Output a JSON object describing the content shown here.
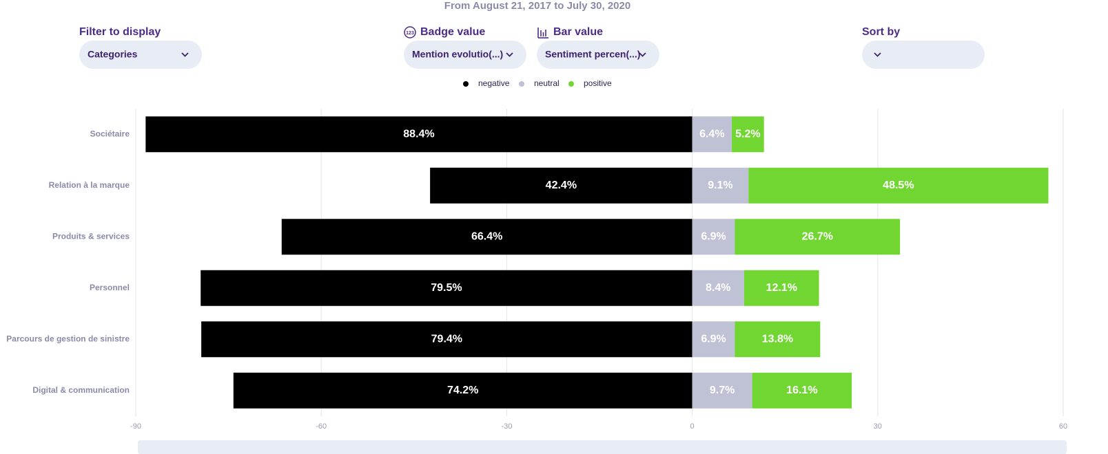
{
  "header": {
    "subtitle": "From August 21, 2017 to July 30, 2020",
    "filters": [
      {
        "label": "Filter to display",
        "value": "Categories"
      },
      {
        "label": "Badge value",
        "value": "Mention evolutio(...)"
      },
      {
        "label": "Bar value",
        "value": "Sentiment percen(...)"
      },
      {
        "label": "Sort by"
      }
    ]
  },
  "chart_data": {
    "type": "bar",
    "orientation": "horizontal",
    "stacked": true,
    "categories": [
      "Sociétaire",
      "Relation à la marque",
      "Produits & services",
      "Personnel",
      "Parcours de gestion de sinistre",
      "Digital & communication"
    ],
    "series": [
      {
        "name": "negative",
        "color": "#000000",
        "values": [
          -88.4,
          -42.4,
          -66.4,
          -79.5,
          -79.4,
          -74.2
        ],
        "value_labels": [
          "88.4%",
          "42.4%",
          "66.4%",
          "79.5%",
          "79.4%",
          "74.2%"
        ]
      },
      {
        "name": "neutral",
        "color": "#bfc1d4",
        "values": [
          6.4,
          9.1,
          6.9,
          8.4,
          6.9,
          9.7
        ],
        "value_labels": [
          "6.4%",
          "9.1%",
          "6.9%",
          "8.4%",
          "6.9%",
          "9.7%"
        ]
      },
      {
        "name": "positive",
        "color": "#72d632",
        "values": [
          5.2,
          48.5,
          26.7,
          12.1,
          13.8,
          16.1
        ],
        "value_labels": [
          "5.2%",
          "48.5%",
          "26.7%",
          "12.1%",
          "13.8%",
          "16.1%"
        ]
      }
    ],
    "xlim": [
      -90,
      60
    ],
    "xticks": [
      -90,
      -60,
      -30,
      0,
      30,
      60
    ],
    "grid": true,
    "legend": "top"
  }
}
